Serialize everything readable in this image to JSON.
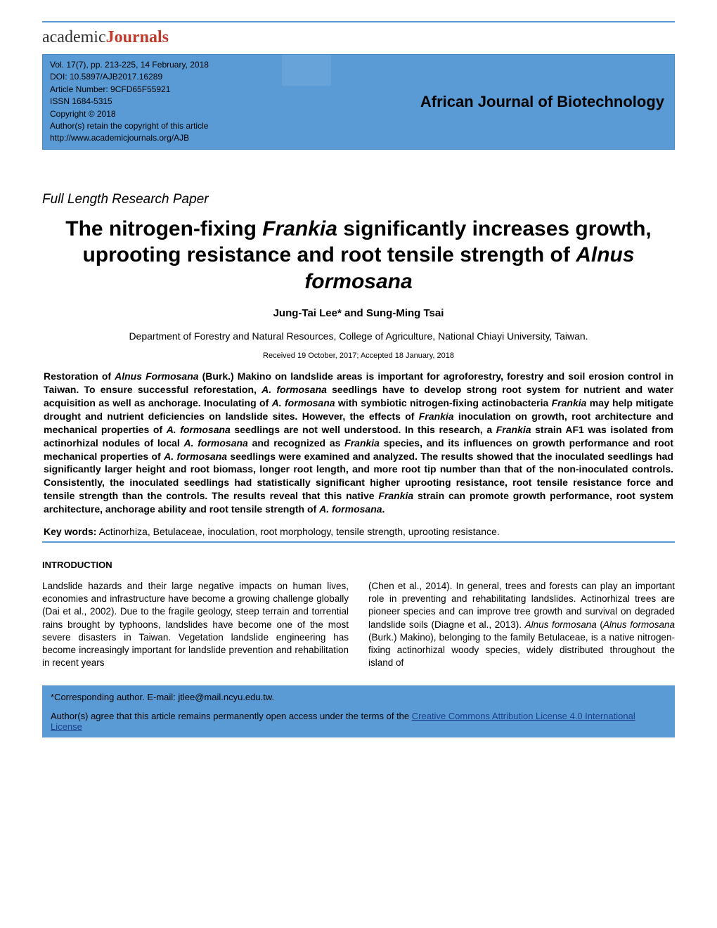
{
  "logo": {
    "academic": "academic",
    "journals": "Journals"
  },
  "header": {
    "vol_line": "Vol. 17(7), pp. 213-225, 14 February, 2018",
    "doi_line": "DOI: 10.5897/AJB2017.16289",
    "article_number": "Article Number: 9CFD65F55921",
    "issn": "ISSN 1684-5315",
    "copyright": "Copyright © 2018",
    "retain": "Author(s) retain the copyright of this article",
    "url": "http://www.academicjournals.org/AJB",
    "journal_name": "African Journal of Biotechnology"
  },
  "paper_type": "Full Length Research Paper",
  "title": {
    "part1": "The nitrogen-fixing ",
    "ital1": "Frankia",
    "part2": " significantly increases growth, uprooting resistance and root tensile strength of ",
    "ital2": "Alnus formosana"
  },
  "authors": "Jung-Tai Lee* and Sung-Ming Tsai",
  "affiliation": "Department of Forestry and Natural Resources, College of Agriculture, National Chiayi University, Taiwan.",
  "dates": "Received 19 October, 2017; Accepted 18 January, 2018",
  "abstract": {
    "p1": "Restoration of ",
    "i1": "Alnus Formosana",
    "p2": " (Burk.) Makino on landslide areas is important for agroforestry, forestry and soil erosion control in Taiwan. To ensure successful reforestation, ",
    "i2": "A. formosana",
    "p3": " seedlings have to develop strong root system for nutrient and water acquisition as well as anchorage. Inoculating of ",
    "i3": "A. formosana",
    "p4": " with symbiotic nitrogen-fixing actinobacteria ",
    "i4": "Frankia",
    "p5": " may help mitigate drought and nutrient deficiencies on landslide sites. However, the effects of ",
    "i5": "Frankia",
    "p6": " inoculation on growth, root architecture and mechanical properties of ",
    "i6": "A. formosana",
    "p7": " seedlings are not well understood. In this research, a ",
    "i7": "Frankia",
    "p8": " strain AF1 was isolated from actinorhizal nodules of local ",
    "i8": "A. formosana",
    "p9": " and recognized as ",
    "i9": "Frankia",
    "p10": " species, and its influences on growth performance and root mechanical properties of ",
    "i10": "A. formosana",
    "p11": " seedlings were examined and analyzed. The results showed that the inoculated seedlings had significantly larger height and root biomass, longer root length, and more root tip number than that of the non-inoculated controls. Consistently, the inoculated seedlings had statistically significant higher uprooting resistance, root tensile resistance force and tensile strength than the controls. The results reveal that this native ",
    "i11": "Frankia",
    "p12": " strain can promote growth performance, root system architecture, anchorage ability and root tensile strength of ",
    "i12": "A. formosana",
    "p13": "."
  },
  "keywords": {
    "label": "Key words:",
    "text": " Actinorhiza, Betulaceae, inoculation, root morphology, tensile strength, uprooting resistance."
  },
  "intro_heading": "INTRODUCTION",
  "intro": {
    "col1": "Landslide hazards and their large negative impacts on human lives, economies and infrastructure have become a growing challenge globally (Dai et al., 2002). Due to the fragile geology, steep terrain and torrential rains brought by typhoons, landslides have become one of the most severe disasters in Taiwan. Vegetation landslide engineering has become increasingly important for landslide prevention and rehabilitation in recent  years",
    "col2_p1": "(Chen et al., 2014). In general, trees and forests can play an important role in preventing and rehabilitating landslides. Actinorhizal trees are pioneer species and can improve tree growth and survival on degraded landslide soils (Diagne et al., 2013). ",
    "col2_i1": "Alnus formosana",
    "col2_p2": " (",
    "col2_i2": "Alnus formosana",
    "col2_p3": " (Burk.) Makino), belonging to the family Betulaceae, is a native nitrogen-fixing actinorhizal woody species, widely distributed throughout the island of"
  },
  "footer": {
    "corr": "*Corresponding author. E-mail: jtlee@mail.ncyu.edu.tw.",
    "oa_p1": "Author(s) agree that this article remains permanently open access under the terms of the ",
    "oa_link": "Creative Commons Attribution License 4.0 International License"
  },
  "colors": {
    "accent": "#5b9bd5",
    "link": "#1a3e8c",
    "text": "#000000",
    "bg": "#ffffff"
  }
}
